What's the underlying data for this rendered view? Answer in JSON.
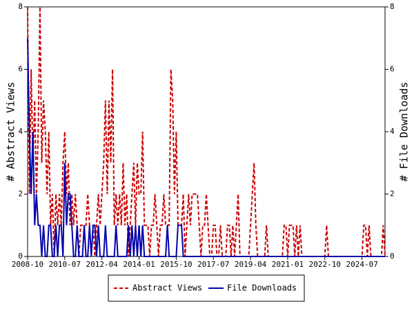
{
  "chart_data": {
    "type": "line",
    "y_label": "# Abstract Views",
    "y2_label": "# File Downloads",
    "x": [
      "2008-10",
      "2008-11",
      "2008-12",
      "2009-01",
      "2009-02",
      "2009-03",
      "2009-04",
      "2009-05",
      "2009-06",
      "2009-07",
      "2009-08",
      "2009-09",
      "2009-10",
      "2009-11",
      "2009-12",
      "2010-01",
      "2010-02",
      "2010-03",
      "2010-04",
      "2010-05",
      "2010-06",
      "2010-07",
      "2010-08",
      "2010-09",
      "2010-10",
      "2010-11",
      "2010-12",
      "2011-01",
      "2011-02",
      "2011-03",
      "2011-04",
      "2011-05",
      "2011-06",
      "2011-07",
      "2011-08",
      "2011-09",
      "2011-10",
      "2011-11",
      "2011-12",
      "2012-01",
      "2012-02",
      "2012-03",
      "2012-04",
      "2012-05",
      "2012-06",
      "2012-07",
      "2012-08",
      "2012-09",
      "2012-10",
      "2012-11",
      "2012-12",
      "2013-01",
      "2013-02",
      "2013-03",
      "2013-04",
      "2013-05",
      "2013-06",
      "2013-07",
      "2013-08",
      "2013-09",
      "2013-10",
      "2013-11",
      "2013-12",
      "2014-01",
      "2014-02",
      "2014-03",
      "2014-04",
      "2014-05",
      "2014-06",
      "2014-07",
      "2014-08",
      "2014-09",
      "2014-10",
      "2014-11",
      "2014-12",
      "2015-01",
      "2015-02",
      "2015-03",
      "2015-04",
      "2015-05",
      "2015-06",
      "2015-07",
      "2015-08",
      "2015-09",
      "2015-10",
      "2015-11",
      "2015-12",
      "2016-01",
      "2016-02",
      "2016-03",
      "2016-04",
      "2016-05",
      "2016-06",
      "2016-07",
      "2016-08",
      "2016-09",
      "2016-10",
      "2016-11",
      "2016-12",
      "2017-01",
      "2017-02",
      "2017-03",
      "2017-04",
      "2017-05",
      "2017-06",
      "2017-07",
      "2017-08",
      "2017-09",
      "2017-10",
      "2017-11",
      "2017-12",
      "2018-01",
      "2018-02",
      "2018-03",
      "2018-04",
      "2018-05",
      "2018-06",
      "2018-07",
      "2018-08",
      "2018-09",
      "2018-10",
      "2018-11",
      "2018-12",
      "2019-01",
      "2019-02",
      "2019-03",
      "2019-04",
      "2019-05",
      "2019-06",
      "2019-07",
      "2019-08",
      "2019-09",
      "2019-10",
      "2019-11",
      "2019-12",
      "2020-01",
      "2020-02",
      "2020-03",
      "2020-04",
      "2020-05",
      "2020-06",
      "2020-07",
      "2020-08",
      "2020-09",
      "2020-10",
      "2020-11",
      "2020-12",
      "2021-01",
      "2021-02",
      "2021-03",
      "2021-04",
      "2021-05",
      "2021-06",
      "2021-07",
      "2021-08",
      "2021-09",
      "2021-10",
      "2021-11",
      "2021-12",
      "2022-01",
      "2022-02",
      "2022-03",
      "2022-04",
      "2022-05",
      "2022-06",
      "2022-07",
      "2022-08",
      "2022-09",
      "2022-10",
      "2022-11",
      "2022-12",
      "2023-01",
      "2023-02",
      "2023-03",
      "2023-04",
      "2023-05",
      "2023-06",
      "2023-07",
      "2023-08",
      "2023-09",
      "2023-10",
      "2023-11",
      "2023-12",
      "2024-01",
      "2024-02",
      "2024-03",
      "2024-04",
      "2024-05",
      "2024-06",
      "2024-07",
      "2024-08",
      "2024-09",
      "2024-10",
      "2024-11",
      "2024-12",
      "2025-01",
      "2025-02",
      "2025-03",
      "2025-04",
      "2025-05",
      "2025-06",
      "2025-07",
      "2025-08"
    ],
    "xticks": [
      "2008-10",
      "2010-07",
      "2012-04",
      "2014-01",
      "2015-10",
      "2017-07",
      "2019-04",
      "2021-01",
      "2022-10",
      "2024-07"
    ],
    "ylim": [
      0,
      8
    ],
    "yticks": [
      0,
      2,
      4,
      6,
      8
    ],
    "y2lim": [
      0,
      8
    ],
    "y2ticks": [
      0,
      2,
      4,
      6,
      8
    ],
    "legend": "bottom",
    "series": [
      {
        "name": "Abstract Views",
        "color": "#cc0000",
        "dash": true,
        "values": [
          8,
          2,
          6,
          3,
          5,
          2,
          4,
          8,
          3,
          5,
          4,
          2,
          4,
          1,
          2,
          0,
          2,
          1,
          2,
          1,
          3,
          4,
          2,
          3,
          1,
          2,
          1,
          2,
          1,
          0,
          1,
          1,
          1,
          1,
          2,
          1,
          1,
          1,
          0,
          1,
          2,
          1,
          2,
          3,
          5,
          2,
          5,
          3,
          6,
          1,
          2,
          1,
          2,
          1,
          3,
          1,
          2,
          0,
          1,
          2,
          3,
          1,
          3,
          2,
          2,
          4,
          1,
          1,
          1,
          0,
          1,
          1,
          2,
          1,
          0,
          1,
          1,
          2,
          1,
          1,
          1,
          6,
          5,
          2,
          4,
          1,
          1,
          1,
          2,
          0,
          1,
          2,
          1,
          2,
          2,
          2,
          2,
          1,
          0,
          1,
          1,
          2,
          1,
          0,
          0,
          1,
          1,
          0,
          0,
          1,
          0,
          0,
          0,
          1,
          1,
          0,
          1,
          0,
          1,
          2,
          0,
          0,
          0,
          0,
          0,
          0,
          1,
          2,
          3,
          1,
          0,
          0,
          0,
          0,
          0,
          1,
          0,
          0,
          0,
          0,
          0,
          0,
          0,
          0,
          0,
          1,
          1,
          0,
          1,
          1,
          1,
          0,
          1,
          0,
          1,
          0,
          0,
          0,
          0,
          0,
          0,
          0,
          0,
          0,
          0,
          0,
          0,
          0,
          0,
          1,
          0,
          0,
          0,
          0,
          0,
          0,
          0,
          0,
          0,
          0,
          0,
          0,
          0,
          0,
          0,
          0,
          0,
          0,
          0,
          0,
          1,
          1,
          0,
          1,
          0,
          0,
          0,
          0,
          0,
          0,
          0,
          1,
          0
        ]
      },
      {
        "name": "File Downloads",
        "color": "#0000aa",
        "dash": false,
        "axis": "y2",
        "values": [
          7,
          4,
          2,
          4,
          1,
          2,
          1,
          1,
          0,
          1,
          0,
          0,
          1,
          1,
          0,
          0,
          1,
          0,
          1,
          1,
          0,
          3,
          1,
          2,
          2,
          1,
          0,
          0,
          1,
          0,
          0,
          0,
          1,
          0,
          0,
          1,
          0,
          1,
          1,
          0,
          1,
          0,
          0,
          0,
          1,
          0,
          0,
          0,
          0,
          0,
          1,
          0,
          0,
          0,
          0,
          0,
          0,
          1,
          0,
          1,
          0,
          1,
          0,
          1,
          0,
          1,
          0,
          0,
          0,
          0,
          0,
          0,
          0,
          0,
          0,
          0,
          0,
          0,
          0,
          1,
          0,
          0,
          0,
          0,
          0,
          1,
          1,
          1,
          0,
          0,
          0,
          0,
          0,
          0,
          0,
          0,
          0,
          0,
          0,
          0,
          0,
          0,
          0,
          0,
          0,
          0,
          0,
          0,
          0,
          0,
          0,
          0,
          0,
          0,
          0,
          0,
          0,
          0,
          0,
          0,
          0,
          0,
          0,
          0,
          0,
          0,
          0,
          0,
          0,
          0,
          0,
          0,
          0,
          0,
          0,
          0,
          0,
          0,
          0,
          0,
          0,
          0,
          0,
          0,
          0,
          0,
          0,
          0,
          0,
          0,
          0,
          0,
          0,
          0,
          0,
          0,
          0,
          0,
          0,
          0,
          0,
          0,
          0,
          0,
          0,
          0,
          0,
          0,
          0,
          0,
          0,
          0,
          0,
          0,
          0,
          0,
          0,
          0,
          0,
          0,
          0,
          0,
          0,
          0,
          0,
          0,
          0,
          0,
          0,
          0,
          0,
          0,
          0,
          0,
          0,
          0,
          0,
          0,
          0,
          0,
          0,
          0,
          0
        ]
      }
    ]
  }
}
